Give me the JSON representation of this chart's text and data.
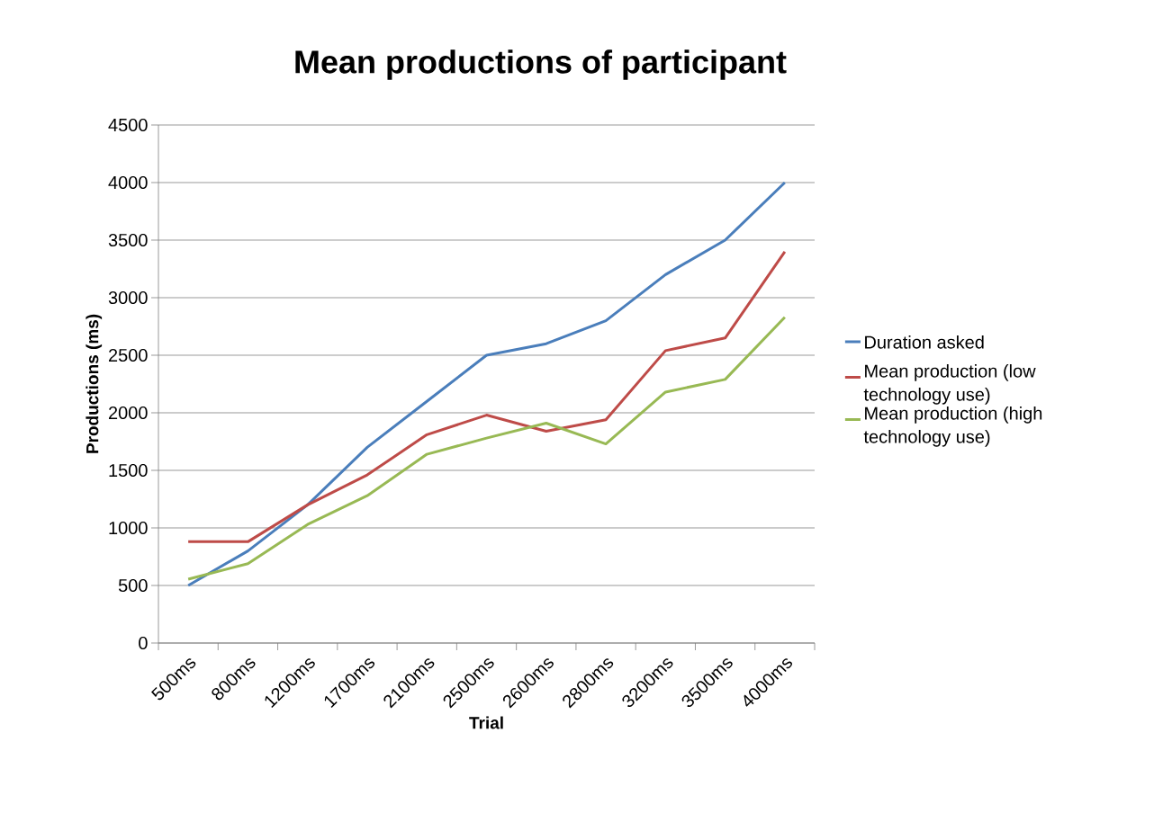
{
  "chart_data": {
    "type": "line",
    "title": "Mean productions of participant",
    "xlabel": "Trial",
    "ylabel": "Productions (ms)",
    "categories": [
      "500ms",
      "800ms",
      "1200ms",
      "1700ms",
      "2100ms",
      "2500ms",
      "2600ms",
      "2800ms",
      "3200ms",
      "3500ms",
      "4000ms"
    ],
    "series": [
      {
        "name": "Duration asked",
        "color": "#4a7ebb",
        "values": [
          500,
          800,
          1200,
          1700,
          2100,
          2500,
          2600,
          2800,
          3200,
          3500,
          4000
        ]
      },
      {
        "name": "Mean production (low technology use)",
        "color": "#be4b48",
        "values": [
          880,
          880,
          1200,
          1460,
          1810,
          1980,
          1840,
          1940,
          2540,
          2650,
          3400
        ]
      },
      {
        "name": "Mean production (high technology use)",
        "color": "#98b954",
        "values": [
          555,
          690,
          1030,
          1280,
          1640,
          1780,
          1910,
          1730,
          2180,
          2290,
          2830
        ]
      }
    ],
    "ylim": [
      0,
      4500
    ],
    "yticks": [
      0,
      500,
      1000,
      1500,
      2000,
      2500,
      3000,
      3500,
      4000,
      4500
    ],
    "grid": "y",
    "legend": "right",
    "marker": "none",
    "line_style": "solid"
  }
}
